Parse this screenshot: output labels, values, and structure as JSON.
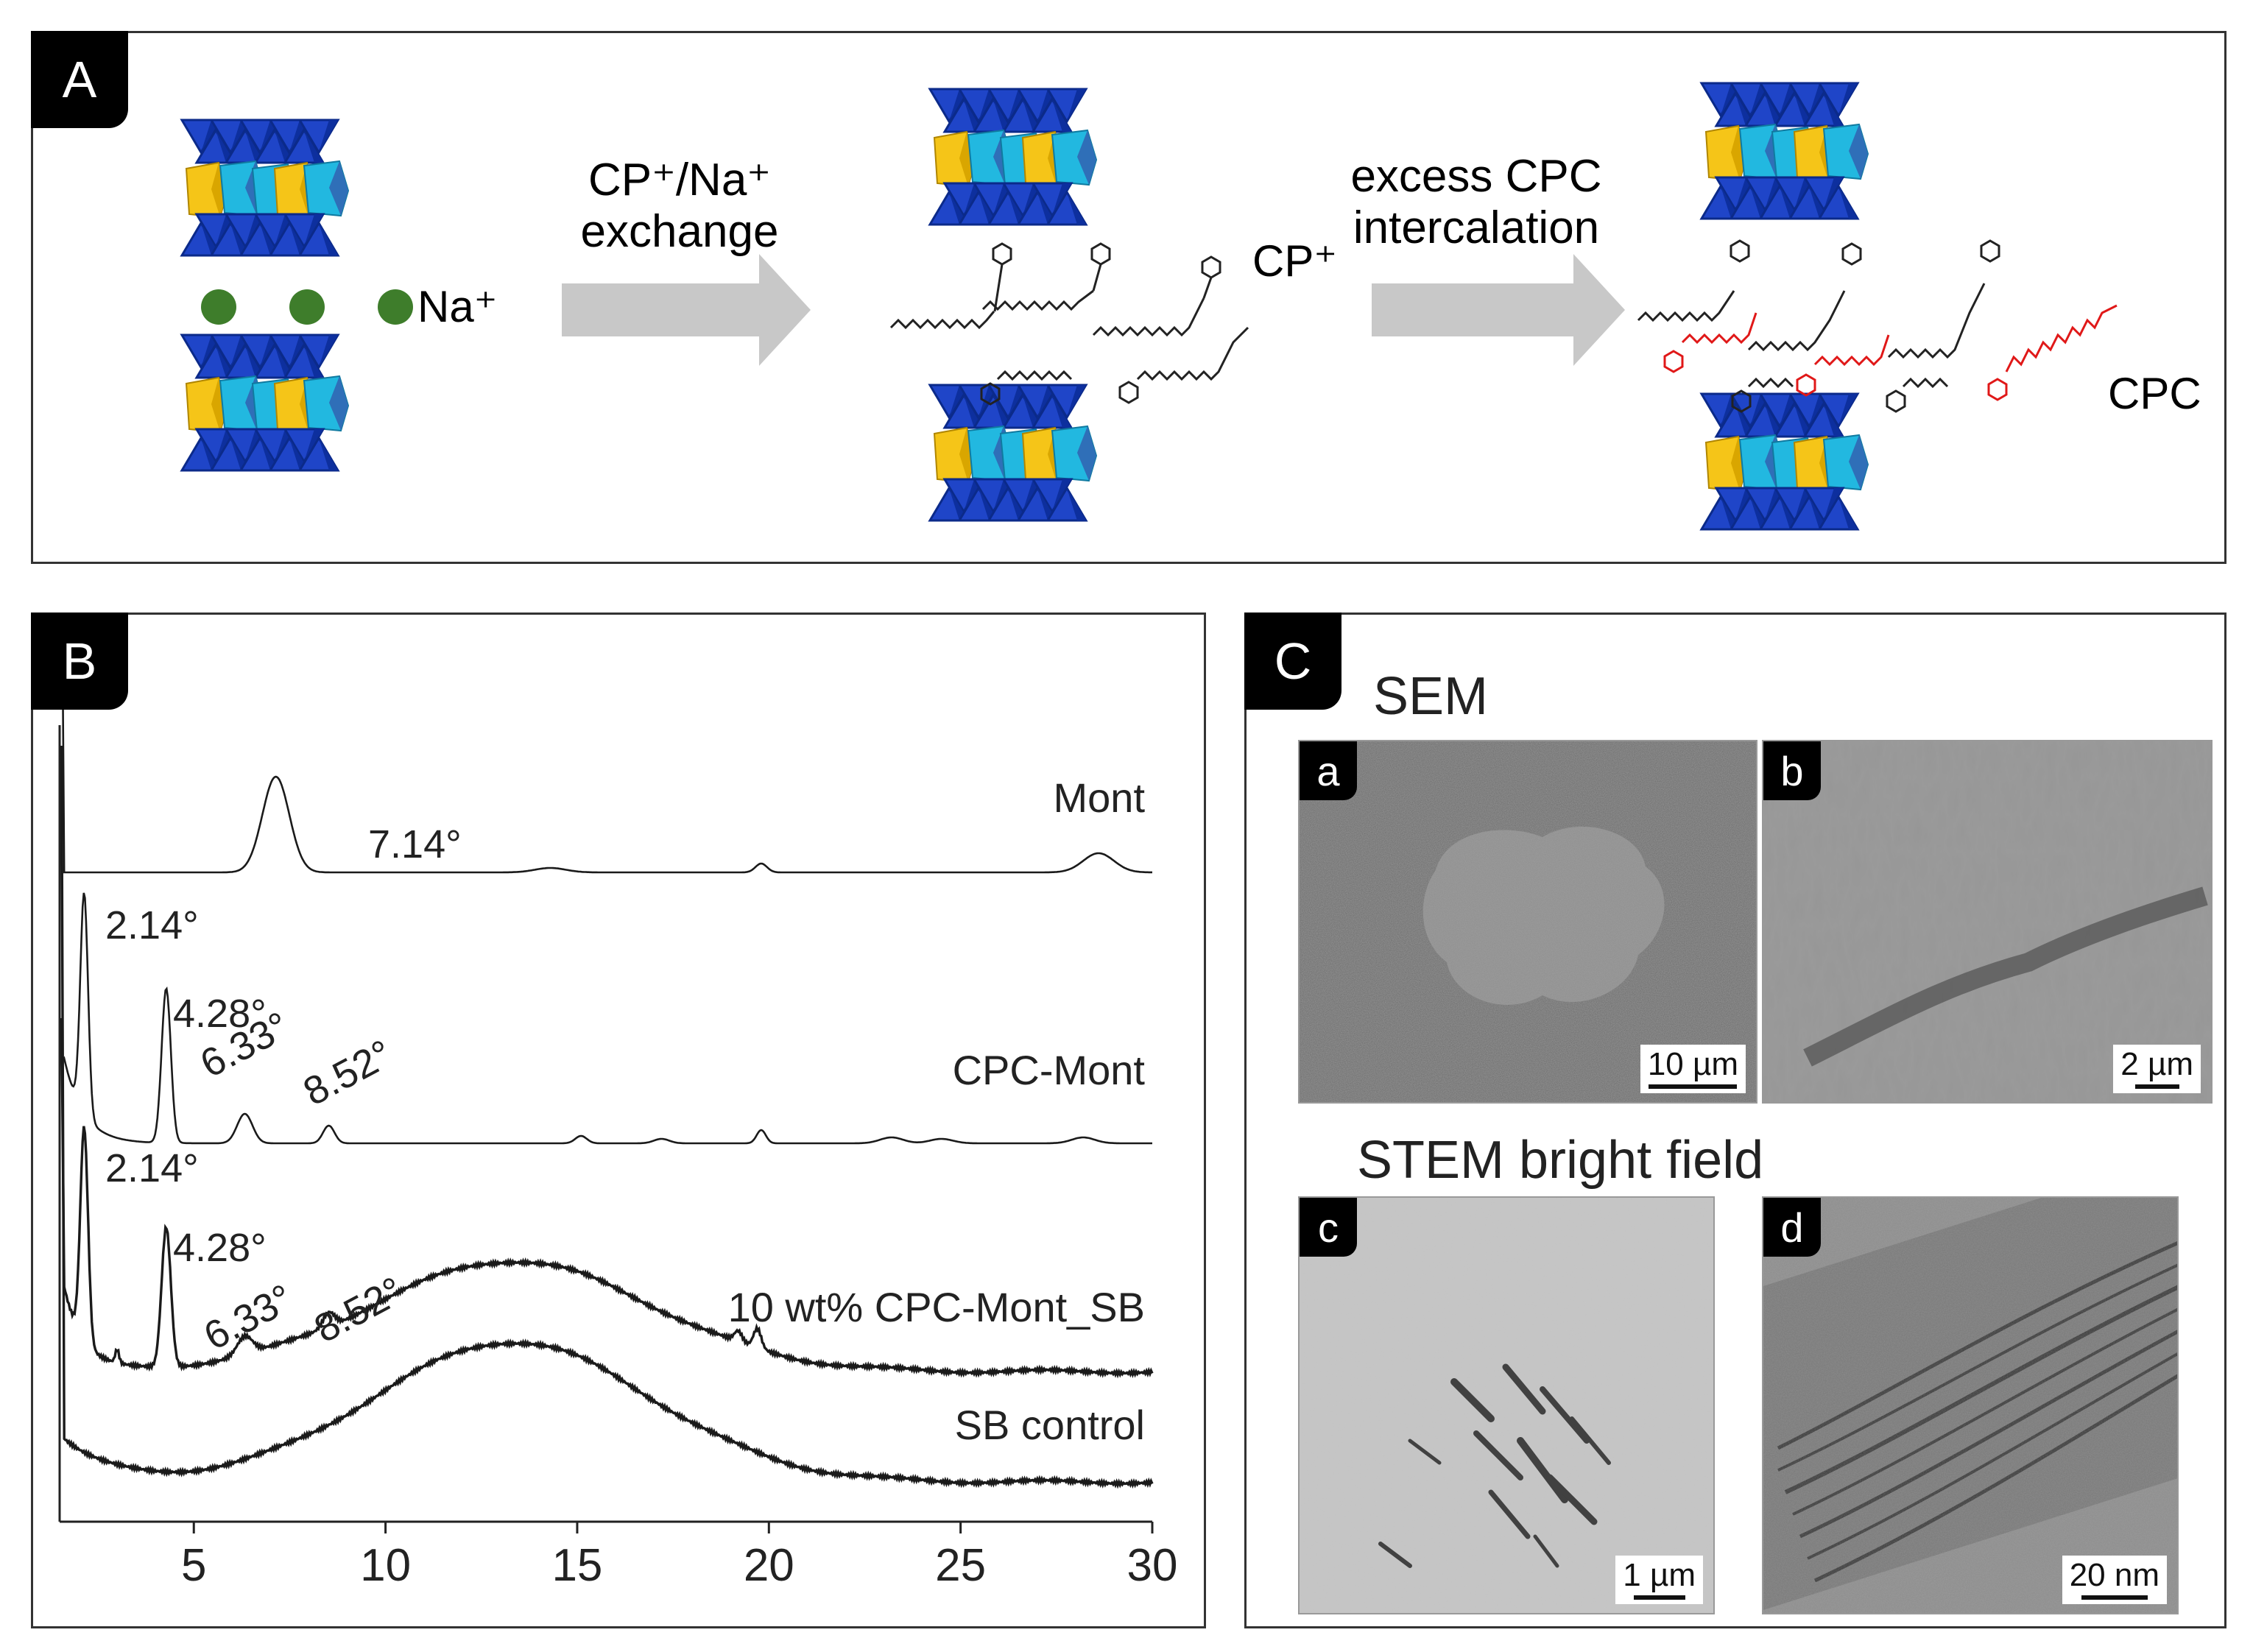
{
  "panel_a": {
    "tag": "A",
    "ion_label": "Na⁺",
    "arrow1_label_line1": "CP⁺/Na⁺",
    "arrow1_label_line2": "exchange",
    "cation_label": "CP⁺",
    "arrow2_label_line1": "excess CPC",
    "arrow2_label_line2": "intercalation",
    "cpc_label": "CPC",
    "colors": {
      "tetrahedra": "#1f45c8",
      "octa_yellow": "#f5c518",
      "octa_cyan": "#22b8e0",
      "sodium": "#3e7d2b",
      "chain": "#222222",
      "cpc": "#e01818",
      "arrow": "#c8c8c8"
    }
  },
  "panel_b": {
    "tag": "B",
    "chart_data": {
      "type": "line",
      "xlabel": "",
      "ylabel": "",
      "xlim": [
        1.5,
        30
      ],
      "x_ticks": [
        5,
        10,
        15,
        20,
        25,
        30
      ],
      "series": [
        {
          "name": "Mont",
          "peaks": [
            {
              "x": 7.14,
              "label": "7.14°"
            }
          ]
        },
        {
          "name": "CPC-Mont",
          "peaks": [
            {
              "x": 2.14,
              "label": "2.14°"
            },
            {
              "x": 4.28,
              "label": "4.28°"
            },
            {
              "x": 6.33,
              "label": "6.33°"
            },
            {
              "x": 8.52,
              "label": "8.52°"
            }
          ]
        },
        {
          "name": "10 wt% CPC-Mont_SB",
          "peaks": [
            {
              "x": 2.14,
              "label": "2.14°"
            },
            {
              "x": 4.28,
              "label": "4.28°"
            },
            {
              "x": 6.33,
              "label": "6.33°"
            },
            {
              "x": 8.52,
              "label": "8.52°"
            }
          ]
        },
        {
          "name": "SB control",
          "peaks": []
        }
      ]
    }
  },
  "panel_c": {
    "tag": "C",
    "sem_title": "SEM",
    "stem_title": "STEM bright field",
    "images": [
      {
        "tag": "a",
        "scale": "10 µm"
      },
      {
        "tag": "b",
        "scale": "2 µm"
      },
      {
        "tag": "c",
        "scale": "1 µm"
      },
      {
        "tag": "d",
        "scale": "20 nm"
      }
    ]
  }
}
